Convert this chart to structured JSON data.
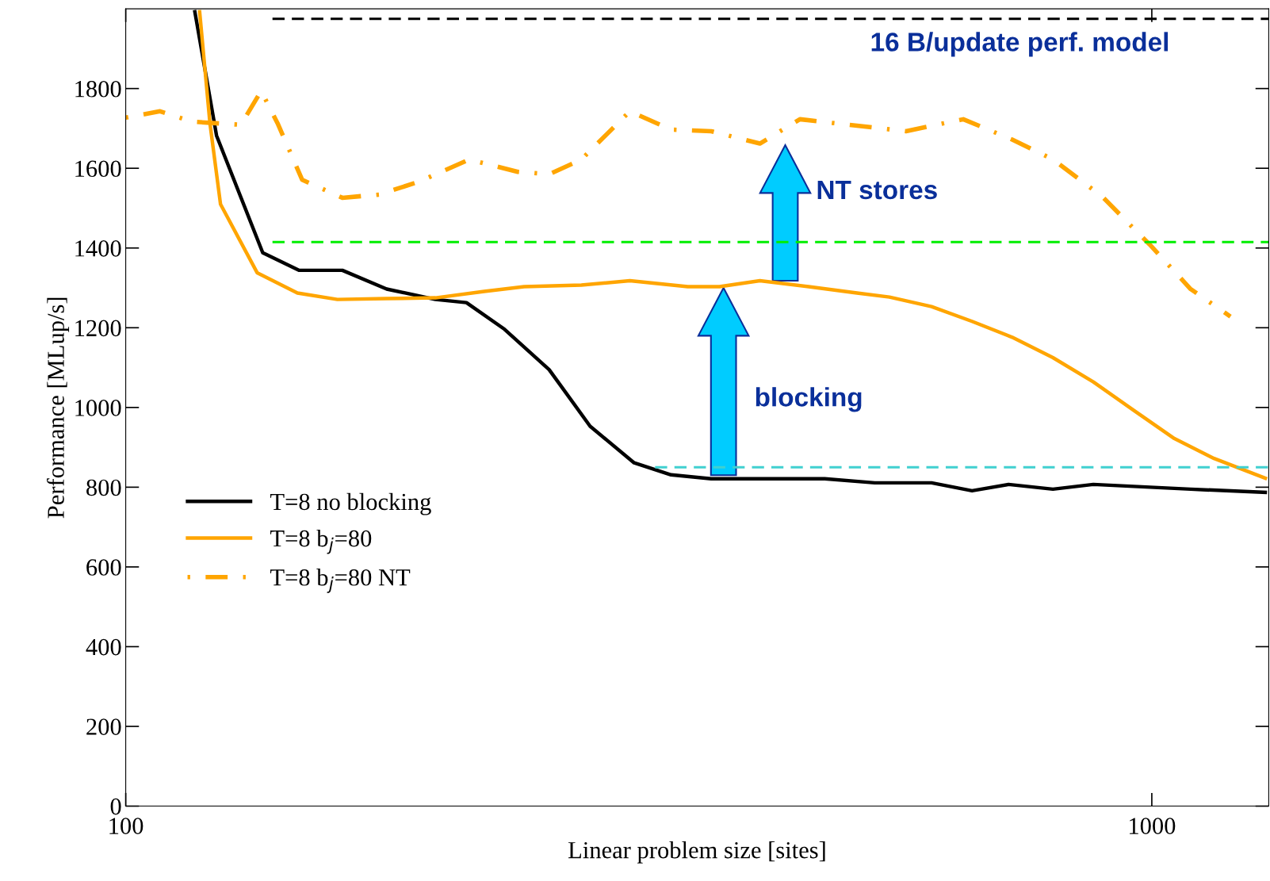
{
  "chart_data": {
    "type": "line",
    "xlabel": "Linear problem size [sites]",
    "ylabel": "Performance [MLup/s]",
    "log": "x",
    "xlim": [
      100,
      1300
    ],
    "ylim": [
      0,
      2000
    ],
    "xticks": [
      100,
      1000
    ],
    "yticks": [
      0,
      200,
      400,
      600,
      800,
      1000,
      1200,
      1400,
      1600,
      1800
    ],
    "grid": false,
    "legend": "left",
    "series": [
      {
        "name": "T=8 no blocking",
        "color": "#000000",
        "line_style": "solid",
        "x": [
          116.7,
          122.6,
          136,
          147.6,
          162.6,
          179.6,
          200.4,
          214.8,
          234,
          258.6,
          283.5,
          313,
          340,
          372,
          423,
          480,
          537,
          610,
          668,
          725,
          801,
          877,
          978,
          1091,
          1295
        ],
        "values": [
          1997,
          1682,
          1388,
          1344,
          1344,
          1297,
          1271,
          1263,
          1196,
          1095,
          953,
          861,
          831,
          821,
          821,
          821,
          811,
          811,
          791,
          807,
          795,
          807,
          801,
          795,
          787
        ]
      },
      {
        "name": "T=8 b$_{j}$=80",
        "color": "#ffa500",
        "line_style": "solid",
        "x": [
          118,
          120.8,
          123.7,
          134.3,
          147,
          160.8,
          179.6,
          200.4,
          223.5,
          244.5,
          278,
          310,
          353,
          379,
          415,
          463,
          516,
          555,
          610,
          668,
          731,
          801,
          877,
          960,
          1052,
          1150,
          1295
        ],
        "values": [
          1997,
          1713,
          1510,
          1338,
          1287,
          1271,
          1273,
          1275,
          1291,
          1303,
          1307,
          1318,
          1303,
          1303,
          1318,
          1303,
          1287,
          1277,
          1253,
          1216,
          1176,
          1125,
          1064,
          993,
          922,
          872,
          821
        ]
      },
      {
        "name": "T=8 b$_{j}$=80 NT",
        "color": "#ffa500",
        "line_style": "dashdot",
        "x": [
          100,
          108,
          116,
          129.5,
          135.5,
          140.6,
          148.6,
          162.6,
          176.6,
          193.4,
          216.1,
          241.1,
          258.6,
          278,
          310,
          340,
          372,
          415,
          454,
          507,
          576,
          655,
          731,
          801,
          894,
          960,
          995,
          1091,
          1193
        ],
        "values": [
          1727,
          1743,
          1717,
          1709,
          1794,
          1713,
          1571,
          1526,
          1534,
          1567,
          1622,
          1591,
          1585,
          1622,
          1743,
          1697,
          1693,
          1662,
          1723,
          1709,
          1693,
          1723,
          1672,
          1622,
          1530,
          1449,
          1409,
          1297,
          1228
        ]
      },
      {
        "name": "16 B/update perf. model",
        "color": "#000000",
        "line_style": "dashed",
        "x": [
          139,
          1300
        ],
        "values": [
          1975,
          1975
        ]
      },
      {
        "color": "#00ee00",
        "line_style": "dashed",
        "x": [
          139,
          1300
        ],
        "values": [
          1415,
          1415
        ]
      },
      {
        "color": "#40d0d0",
        "line_style": "dashed",
        "x": [
          328,
          1300
        ],
        "values": [
          850,
          850
        ]
      }
    ],
    "annotations": [
      "blocking",
      "NT stores"
    ]
  }
}
